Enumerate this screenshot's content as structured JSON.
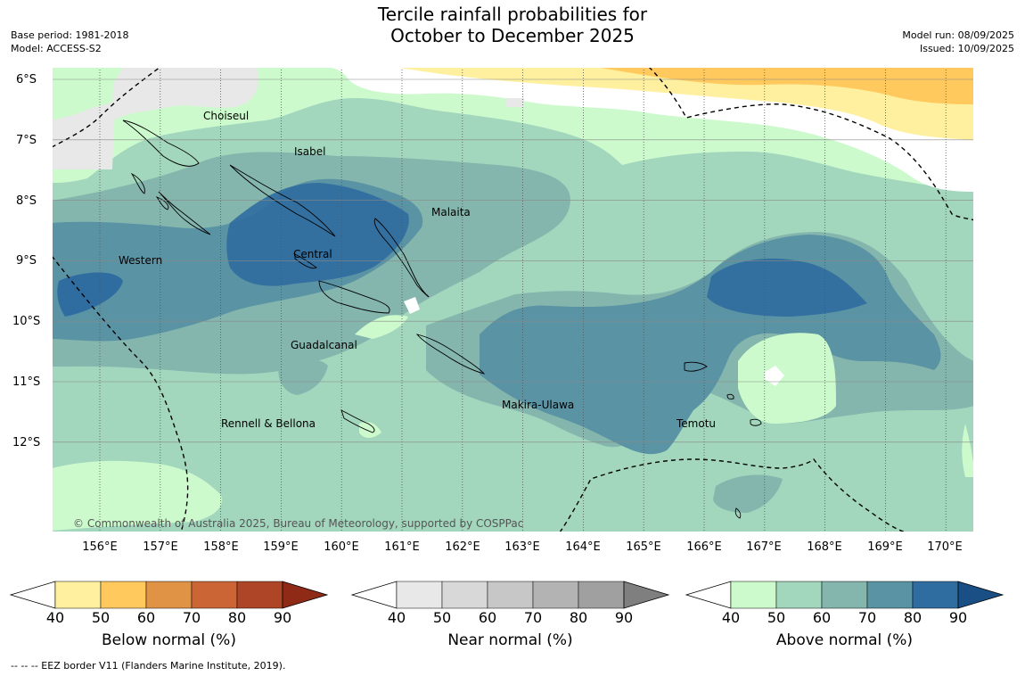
{
  "title_line1": "Tercile rainfall probabilities for",
  "title_line2": "October to December 2025",
  "meta_left": {
    "base_period": "Base period: 1981-2018",
    "model": "Model: ACCESS-S2"
  },
  "meta_right": {
    "model_run": "Model run: 08/09/2025",
    "issued": "Issued: 10/09/2025"
  },
  "latitude_labels": [
    "6°S",
    "7°S",
    "8°S",
    "9°S",
    "10°S",
    "11°S",
    "12°S"
  ],
  "longitude_labels": [
    "156°E",
    "157°E",
    "158°E",
    "159°E",
    "160°E",
    "161°E",
    "162°E",
    "163°E",
    "164°E",
    "165°E",
    "166°E",
    "167°E",
    "168°E",
    "169°E",
    "170°E"
  ],
  "places": [
    {
      "name": "Choiseul"
    },
    {
      "name": "Isabel"
    },
    {
      "name": "Malaita"
    },
    {
      "name": "Western"
    },
    {
      "name": "Central"
    },
    {
      "name": "Guadalcanal"
    },
    {
      "name": "Makira-Ulawa"
    },
    {
      "name": "Rennell & Bellona"
    },
    {
      "name": "Temotu"
    }
  ],
  "copyright": "© Commonwealth of Australia 2025, Bureau of Meteorology, supported by COSPPac",
  "colorbars": [
    {
      "title": "Below normal (%)",
      "ticks": [
        "40",
        "50",
        "60",
        "70",
        "80",
        "90"
      ],
      "colors": [
        "#fff0a0",
        "#ffc95e",
        "#e09344",
        "#cc6535",
        "#ad4526"
      ],
      "extend_color": "#8f2a16"
    },
    {
      "title": "Near normal (%)",
      "ticks": [
        "40",
        "50",
        "60",
        "70",
        "80",
        "90"
      ],
      "colors": [
        "#e8e8e8",
        "#d8d8d8",
        "#c7c7c7",
        "#b3b3b3",
        "#a0a0a0"
      ],
      "extend_color": "#7f7f7f"
    },
    {
      "title": "Above normal (%)",
      "ticks": [
        "40",
        "50",
        "60",
        "70",
        "80",
        "90"
      ],
      "colors": [
        "#ccfacc",
        "#a2d6bd",
        "#84b6ad",
        "#5a93a4",
        "#2f6da0"
      ],
      "extend_color": "#1a4f86"
    }
  ],
  "footnote": "--  --  -- EEZ border V11 (Flanders Marine Institute, 2019)."
}
